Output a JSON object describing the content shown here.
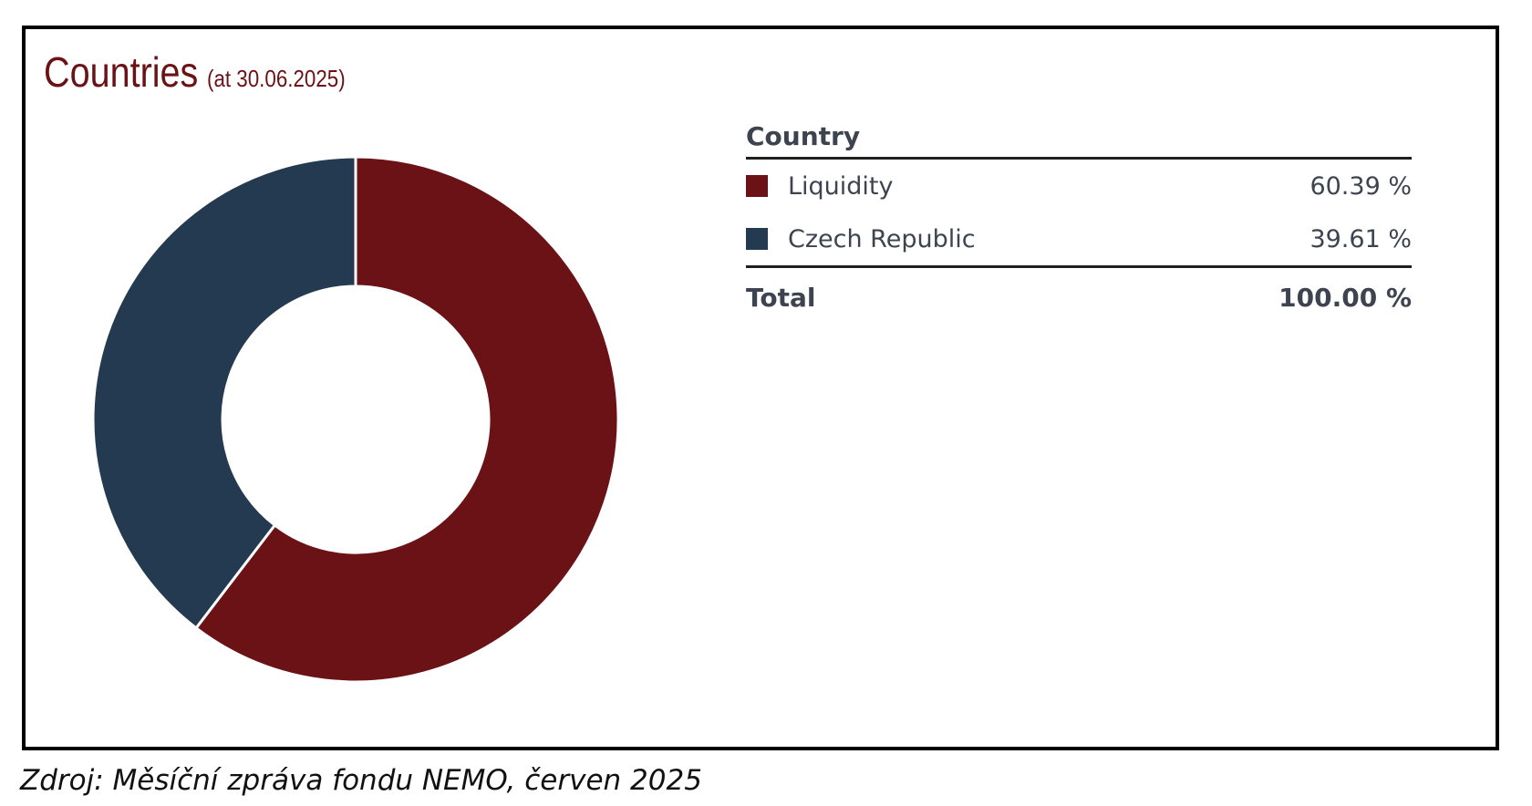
{
  "chart_data": {
    "type": "pie",
    "title": "Countries",
    "subtitle": "(at 30.06.2025)",
    "table_header": "Country",
    "categories": [
      "Liquidity",
      "Czech Republic"
    ],
    "values": [
      60.39,
      39.61
    ],
    "value_labels": [
      "60.39 %",
      "39.61 %"
    ],
    "colors": [
      "#6b1216",
      "#243a50"
    ],
    "total_label": "Total",
    "total_value": "100.00 %",
    "donut": true,
    "legend_position": "right"
  },
  "footer": {
    "source": "Zdroj: Měsíční zpráva fondu NEMO, červen 2025"
  }
}
